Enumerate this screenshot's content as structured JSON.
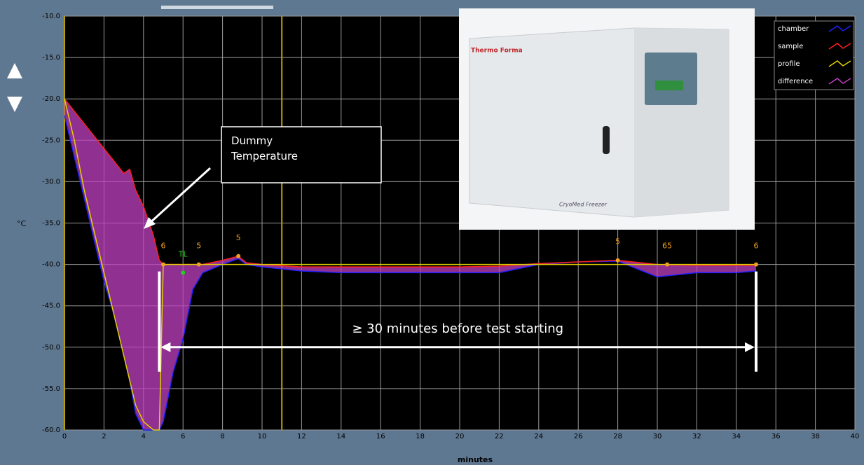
{
  "chart_data": {
    "type": "line",
    "x": [
      0,
      0.5,
      1,
      1.5,
      2,
      2.5,
      3,
      3.3,
      3.6,
      4,
      4.5,
      4.8,
      5,
      5.5,
      6,
      6.5,
      7,
      8,
      8.8,
      9.2,
      10,
      12,
      14,
      16,
      18,
      20,
      22,
      24,
      26,
      28,
      30,
      32,
      34,
      35
    ],
    "series": [
      {
        "name": "chamber",
        "color": "#2020ff",
        "values": [
          -22,
          -27,
          -32,
          -37,
          -42,
          -46,
          -51,
          -54,
          -58,
          -60,
          -60,
          -60,
          -59,
          -53,
          -49,
          -43,
          -41,
          -40,
          -39.3,
          -40,
          -40.3,
          -40.8,
          -41,
          -41,
          -41,
          -41,
          -41,
          -40,
          -39.7,
          -39.6,
          -41.5,
          -41,
          -41,
          -40.8
        ]
      },
      {
        "name": "sample",
        "color": "#ff2020",
        "values": [
          -20,
          -21.5,
          -23,
          -24.5,
          -26,
          -27.5,
          -29,
          -28.5,
          -31,
          -33,
          -36.5,
          -39.5,
          -40,
          -40,
          -40,
          -40,
          -40,
          -39.5,
          -39,
          -39.8,
          -40,
          -40.3,
          -40.3,
          -40.3,
          -40.3,
          -40.3,
          -40.2,
          -39.9,
          -39.7,
          -39.5,
          -40,
          -40.1,
          -40.1,
          -40.1
        ]
      },
      {
        "name": "profile",
        "color": "#e0d000",
        "values": [
          -20,
          -25,
          -31,
          -36,
          -41,
          -46,
          -51,
          -54,
          -57,
          -59,
          -60,
          -60,
          -40,
          -40,
          -40,
          -40,
          -40,
          -40,
          -40,
          -40,
          -40,
          -40,
          -40,
          -40,
          -40,
          -40,
          -40,
          -40,
          -40,
          -40,
          -40,
          -40,
          -40,
          -40
        ]
      },
      {
        "name": "difference",
        "color": "#c040c0",
        "values": [
          -22,
          -27,
          -32,
          -37,
          -42,
          -46,
          -51,
          -54,
          -58,
          -60,
          -60,
          -60,
          -59,
          -53,
          -49,
          -43,
          -41,
          -40,
          -39.3,
          -40,
          -40.3,
          -40.8,
          -41,
          -41,
          -41,
          -41,
          -41,
          -40,
          -39.7,
          -39.6,
          -41.5,
          -41,
          -41,
          -40.8
        ]
      }
    ],
    "xlim": [
      0,
      40
    ],
    "xticks": [
      0,
      2,
      4,
      6,
      8,
      10,
      12,
      14,
      16,
      18,
      20,
      22,
      24,
      26,
      28,
      30,
      32,
      34,
      36,
      38,
      40
    ],
    "ylim": [
      -60,
      -10
    ],
    "yticks": [
      {
        "value": -10,
        "label": "-10.0"
      },
      {
        "value": -15,
        "label": "-15.0"
      },
      {
        "value": -20,
        "label": "-20.0"
      },
      {
        "value": -25,
        "label": "-25.0"
      },
      {
        "value": -30,
        "label": "-30.0"
      },
      {
        "value": -35,
        "label": "-35.0"
      },
      {
        "value": -40,
        "label": "-40.0"
      },
      {
        "value": -45,
        "label": "-45.0"
      },
      {
        "value": -50,
        "label": "-50.0"
      },
      {
        "value": -55,
        "label": "-55.0"
      },
      {
        "value": -60,
        "label": "-60.0"
      }
    ],
    "xlabel": "minutes",
    "ylabel": "°C",
    "grid": true,
    "cursors": [
      0,
      11
    ],
    "markers": [
      {
        "x": 5,
        "y": -40,
        "label": "6"
      },
      {
        "x": 6,
        "y": -41,
        "label": "TL"
      },
      {
        "x": 6.8,
        "y": -40,
        "label": "5"
      },
      {
        "x": 8.8,
        "y": -39,
        "label": "5"
      },
      {
        "x": 28,
        "y": -39.5,
        "label": "5"
      },
      {
        "x": 30.5,
        "y": -40,
        "label": "65"
      },
      {
        "x": 35,
        "y": -40,
        "label": "6"
      }
    ],
    "annotation_box": "Dummy Temperature",
    "span": {
      "x": [
        4.8,
        35
      ],
      "y": -50,
      "label": "≥ 30 minutes before test starting"
    }
  },
  "photo": {
    "brand": "Thermo Forma",
    "model": "CryoMed Freezer"
  }
}
